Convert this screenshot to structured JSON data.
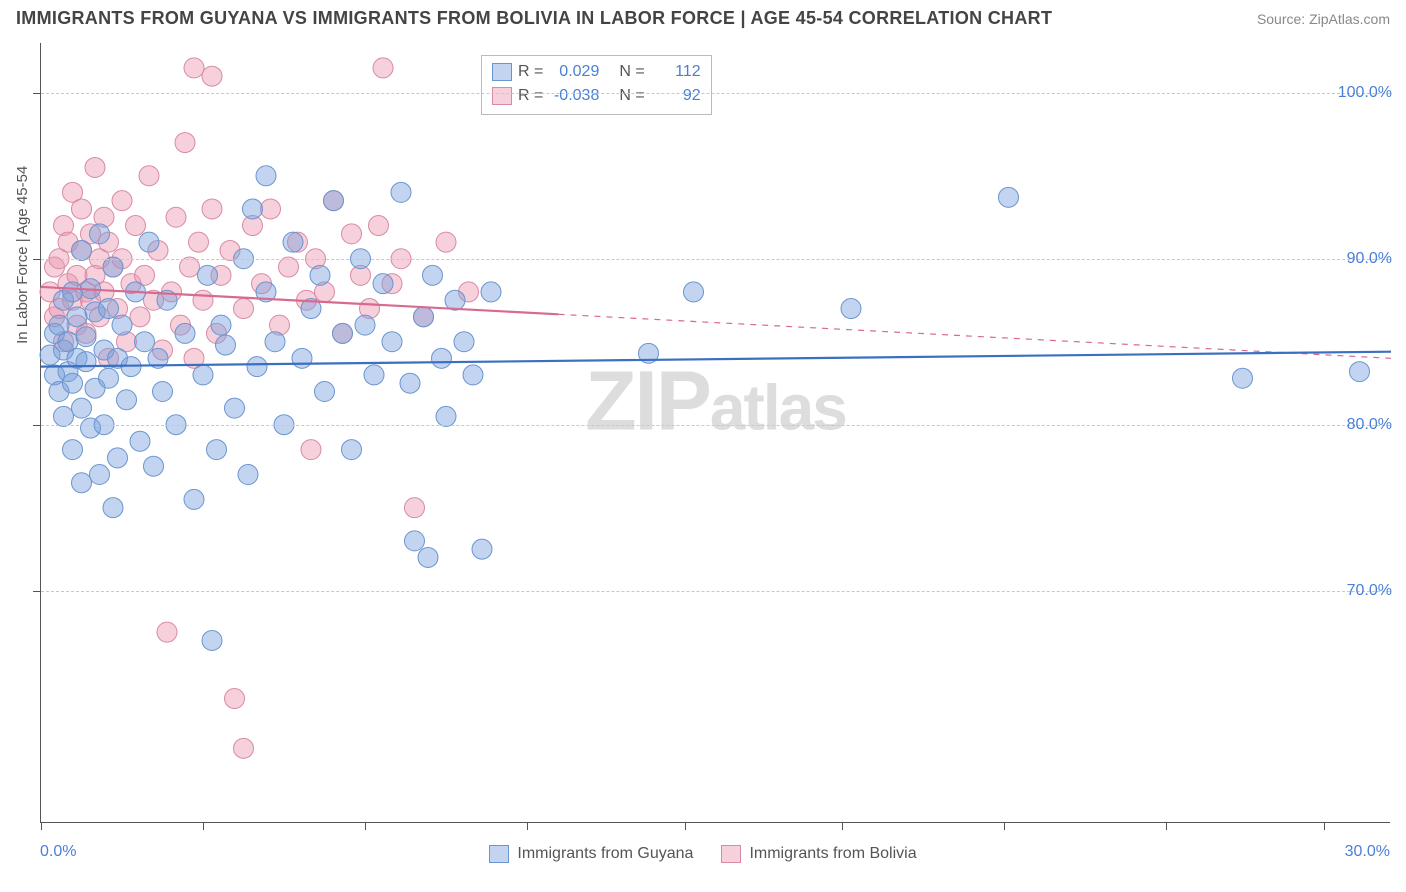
{
  "header": {
    "title": "IMMIGRANTS FROM GUYANA VS IMMIGRANTS FROM BOLIVIA IN LABOR FORCE | AGE 45-54 CORRELATION CHART",
    "source": "Source: ZipAtlas.com"
  },
  "chart": {
    "type": "scatter",
    "y_axis_label": "In Labor Force | Age 45-54",
    "xlim": [
      0,
      30
    ],
    "ylim": [
      56,
      103
    ],
    "x_min_label": "0.0%",
    "x_max_label": "30.0%",
    "y_ticks": [
      70,
      80,
      90,
      100
    ],
    "y_tick_labels": [
      "70.0%",
      "80.0%",
      "90.0%",
      "100.0%"
    ],
    "x_tick_positions": [
      0,
      3.6,
      7.2,
      10.8,
      14.3,
      17.8,
      21.4,
      25,
      28.5
    ],
    "grid_color": "#c8c8c8",
    "axis_color": "#555555",
    "background_color": "#ffffff",
    "text_color": "#555555",
    "value_color": "#4a7fd6",
    "watermark_text_main": "ZIP",
    "watermark_text_sub": "atlas",
    "marker_radius": 10,
    "marker_opacity": 0.45,
    "line_width_solid": 2.2,
    "line_width_dashed": 1.2,
    "series": {
      "guyana": {
        "label": "Immigrants from Guyana",
        "R": "0.029",
        "N": "112",
        "fill_color": "rgba(120,160,220,0.45)",
        "stroke_color": "#6a95d0",
        "line_color": "#3b6fc0",
        "regression": {
          "x1": 0,
          "y1": 83.5,
          "x2": 30,
          "y2": 84.4,
          "solid_until_x": 30
        },
        "points": [
          [
            0.2,
            84.2
          ],
          [
            0.3,
            83.0
          ],
          [
            0.3,
            85.5
          ],
          [
            0.4,
            82.0
          ],
          [
            0.4,
            86.0
          ],
          [
            0.5,
            84.5
          ],
          [
            0.5,
            87.5
          ],
          [
            0.5,
            80.5
          ],
          [
            0.6,
            83.2
          ],
          [
            0.6,
            85.0
          ],
          [
            0.7,
            88.0
          ],
          [
            0.7,
            82.5
          ],
          [
            0.7,
            78.5
          ],
          [
            0.8,
            84.0
          ],
          [
            0.8,
            86.5
          ],
          [
            0.9,
            90.5
          ],
          [
            0.9,
            81.0
          ],
          [
            0.9,
            76.5
          ],
          [
            1.0,
            83.8
          ],
          [
            1.0,
            85.3
          ],
          [
            1.1,
            88.2
          ],
          [
            1.1,
            79.8
          ],
          [
            1.2,
            82.2
          ],
          [
            1.2,
            86.8
          ],
          [
            1.3,
            91.5
          ],
          [
            1.3,
            77.0
          ],
          [
            1.4,
            84.5
          ],
          [
            1.4,
            80.0
          ],
          [
            1.5,
            87.0
          ],
          [
            1.5,
            82.8
          ],
          [
            1.6,
            89.5
          ],
          [
            1.6,
            75.0
          ],
          [
            1.7,
            84.0
          ],
          [
            1.7,
            78.0
          ],
          [
            1.8,
            86.0
          ],
          [
            1.9,
            81.5
          ],
          [
            2.0,
            83.5
          ],
          [
            2.1,
            88.0
          ],
          [
            2.2,
            79.0
          ],
          [
            2.3,
            85.0
          ],
          [
            2.4,
            91.0
          ],
          [
            2.5,
            77.5
          ],
          [
            2.6,
            84.0
          ],
          [
            2.7,
            82.0
          ],
          [
            2.8,
            87.5
          ],
          [
            3.0,
            80.0
          ],
          [
            3.2,
            85.5
          ],
          [
            3.4,
            75.5
          ],
          [
            3.6,
            83.0
          ],
          [
            3.7,
            89.0
          ],
          [
            3.8,
            67.0
          ],
          [
            3.9,
            78.5
          ],
          [
            4.0,
            86.0
          ],
          [
            4.1,
            84.8
          ],
          [
            4.3,
            81.0
          ],
          [
            4.5,
            90.0
          ],
          [
            4.6,
            77.0
          ],
          [
            4.7,
            93.0
          ],
          [
            4.8,
            83.5
          ],
          [
            5.0,
            88.0
          ],
          [
            5.0,
            95.0
          ],
          [
            5.2,
            85.0
          ],
          [
            5.4,
            80.0
          ],
          [
            5.6,
            91.0
          ],
          [
            5.8,
            84.0
          ],
          [
            6.0,
            87.0
          ],
          [
            6.2,
            89.0
          ],
          [
            6.3,
            82.0
          ],
          [
            6.5,
            93.5
          ],
          [
            6.7,
            85.5
          ],
          [
            6.9,
            78.5
          ],
          [
            7.1,
            90.0
          ],
          [
            7.2,
            86.0
          ],
          [
            7.4,
            83.0
          ],
          [
            7.6,
            88.5
          ],
          [
            7.8,
            85.0
          ],
          [
            8.0,
            94.0
          ],
          [
            8.2,
            82.5
          ],
          [
            8.3,
            73.0
          ],
          [
            8.5,
            86.5
          ],
          [
            8.6,
            72.0
          ],
          [
            8.7,
            89.0
          ],
          [
            8.9,
            84.0
          ],
          [
            9.0,
            80.5
          ],
          [
            9.2,
            87.5
          ],
          [
            9.4,
            85.0
          ],
          [
            9.6,
            83.0
          ],
          [
            9.8,
            72.5
          ],
          [
            10.0,
            88.0
          ],
          [
            13.5,
            84.3
          ],
          [
            14.5,
            88.0
          ],
          [
            18.0,
            87.0
          ],
          [
            21.5,
            93.7
          ],
          [
            26.7,
            82.8
          ],
          [
            29.3,
            83.2
          ]
        ]
      },
      "bolivia": {
        "label": "Immigrants from Bolivia",
        "R": "-0.038",
        "N": "92",
        "fill_color": "rgba(235,150,175,0.45)",
        "stroke_color": "#d98aa5",
        "line_color": "#d96a8f",
        "regression": {
          "x1": 0,
          "y1": 88.3,
          "x2": 30,
          "y2": 84.0,
          "solid_until_x": 11.5
        },
        "points": [
          [
            0.2,
            88.0
          ],
          [
            0.3,
            89.5
          ],
          [
            0.3,
            86.5
          ],
          [
            0.4,
            90.0
          ],
          [
            0.4,
            87.0
          ],
          [
            0.5,
            92.0
          ],
          [
            0.5,
            85.0
          ],
          [
            0.6,
            88.5
          ],
          [
            0.6,
            91.0
          ],
          [
            0.7,
            87.5
          ],
          [
            0.7,
            94.0
          ],
          [
            0.8,
            89.0
          ],
          [
            0.8,
            86.0
          ],
          [
            0.9,
            90.5
          ],
          [
            0.9,
            93.0
          ],
          [
            1.0,
            88.0
          ],
          [
            1.0,
            85.5
          ],
          [
            1.1,
            91.5
          ],
          [
            1.1,
            87.5
          ],
          [
            1.2,
            95.5
          ],
          [
            1.2,
            89.0
          ],
          [
            1.3,
            86.5
          ],
          [
            1.3,
            90.0
          ],
          [
            1.4,
            92.5
          ],
          [
            1.4,
            88.0
          ],
          [
            1.5,
            84.0
          ],
          [
            1.5,
            91.0
          ],
          [
            1.6,
            89.5
          ],
          [
            1.7,
            87.0
          ],
          [
            1.8,
            93.5
          ],
          [
            1.8,
            90.0
          ],
          [
            1.9,
            85.0
          ],
          [
            2.0,
            88.5
          ],
          [
            2.1,
            92.0
          ],
          [
            2.2,
            86.5
          ],
          [
            2.3,
            89.0
          ],
          [
            2.4,
            95.0
          ],
          [
            2.5,
            87.5
          ],
          [
            2.6,
            90.5
          ],
          [
            2.7,
            84.5
          ],
          [
            2.8,
            67.5
          ],
          [
            2.9,
            88.0
          ],
          [
            3.0,
            92.5
          ],
          [
            3.1,
            86.0
          ],
          [
            3.2,
            97.0
          ],
          [
            3.3,
            89.5
          ],
          [
            3.4,
            84.0
          ],
          [
            3.4,
            101.5
          ],
          [
            3.5,
            91.0
          ],
          [
            3.6,
            87.5
          ],
          [
            3.8,
            101.0
          ],
          [
            3.8,
            93.0
          ],
          [
            3.9,
            85.5
          ],
          [
            4.0,
            89.0
          ],
          [
            4.2,
            90.5
          ],
          [
            4.3,
            63.5
          ],
          [
            4.5,
            60.5
          ],
          [
            4.5,
            87.0
          ],
          [
            4.7,
            92.0
          ],
          [
            4.9,
            88.5
          ],
          [
            5.1,
            93.0
          ],
          [
            5.3,
            86.0
          ],
          [
            5.5,
            89.5
          ],
          [
            5.7,
            91.0
          ],
          [
            5.9,
            87.5
          ],
          [
            6.0,
            78.5
          ],
          [
            6.1,
            90.0
          ],
          [
            6.3,
            88.0
          ],
          [
            6.5,
            93.5
          ],
          [
            6.7,
            85.5
          ],
          [
            6.9,
            91.5
          ],
          [
            7.1,
            89.0
          ],
          [
            7.3,
            87.0
          ],
          [
            7.5,
            92.0
          ],
          [
            7.6,
            101.5
          ],
          [
            7.8,
            88.5
          ],
          [
            8.0,
            90.0
          ],
          [
            8.3,
            75.0
          ],
          [
            8.5,
            86.5
          ],
          [
            9.0,
            91.0
          ],
          [
            9.5,
            88.0
          ]
        ]
      }
    },
    "stat_box": {
      "rows": [
        {
          "swatch": "blue",
          "r_label": "R =",
          "r_val": "0.029",
          "n_label": "N =",
          "n_val": "112"
        },
        {
          "swatch": "pink",
          "r_label": "R =",
          "r_val": "-0.038",
          "n_label": "N =",
          "n_val": "92"
        }
      ]
    }
  }
}
